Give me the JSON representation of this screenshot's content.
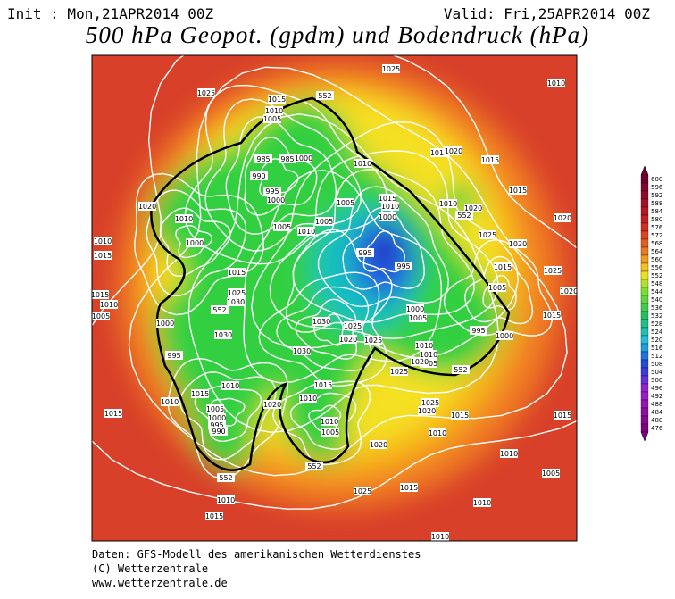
{
  "header": {
    "init": "Init : Mon,21APR2014 00Z",
    "valid": "Valid: Fri,25APR2014 00Z",
    "title": "500 hPa Geopot. (gpdm) und Bodendruck (hPa)"
  },
  "colorbar": {
    "labels": [
      600,
      596,
      592,
      588,
      584,
      580,
      576,
      572,
      568,
      564,
      560,
      556,
      552,
      548,
      544,
      540,
      536,
      532,
      528,
      524,
      520,
      516,
      512,
      508,
      504,
      500,
      496,
      492,
      488,
      484,
      480,
      476
    ]
  },
  "map": {
    "isobar_labels": [
      "1025",
      "1025",
      "1015",
      "1010",
      "1005",
      "552",
      "985",
      "985",
      "1000",
      "990",
      "995",
      "1000",
      "1020",
      "1010",
      "1000",
      "1005",
      "1010",
      "1005",
      "1005",
      "1015",
      "1010",
      "1000",
      "995",
      "995",
      "1000",
      "1005",
      "1010",
      "1015",
      "1020",
      "1015",
      "1010",
      "1015",
      "1020",
      "1010",
      "1025",
      "1020",
      "1020",
      "1015",
      "1005",
      "1025",
      "1020",
      "1015",
      "1010",
      "1015",
      "1010",
      "1005",
      "1000",
      "1015",
      "1025",
      "1030",
      "552",
      "1030",
      "1025",
      "1030",
      "1020",
      "1025",
      "1030",
      "995",
      "1010",
      "1005",
      "1020",
      "552",
      "1025",
      "995",
      "1000",
      "1015",
      "1010",
      "1015",
      "1010",
      "1020",
      "1010",
      "1005",
      "1025",
      "1020",
      "1015",
      "1010",
      "1020",
      "1005",
      "1000",
      "995",
      "990",
      "1015",
      "1010",
      "552",
      "552",
      "1010",
      "1025",
      "1015",
      "1015",
      "1010",
      "1010",
      "1015",
      "1005",
      "1010",
      "1010",
      "552",
      "1015"
    ]
  },
  "footer": {
    "lines": [
      "Daten: GFS-Modell des amerikanischen Wetterdienstes",
      "(C) Wetterzentrale",
      "www.wetterzentrale.de"
    ]
  }
}
